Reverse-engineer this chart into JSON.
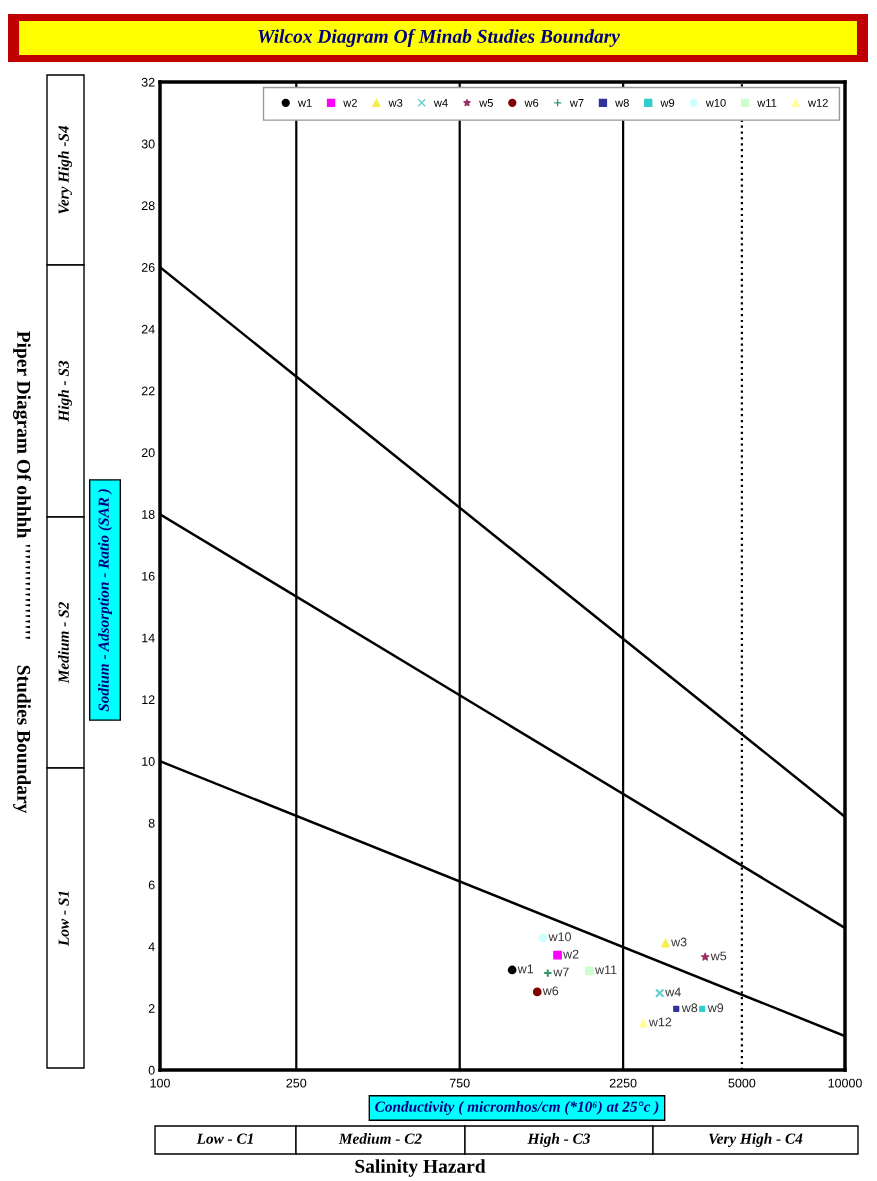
{
  "chart_data": {
    "type": "scatter",
    "title": "Wilcox Diagram Of Minab Studies Boundary",
    "xlabel": "Conductivity ( micromhos/cm (*10⁶) at 25°c )",
    "ylabel": "Sodium - Adsorption - Ratio (SAR )",
    "log": "x",
    "xlim": [
      100,
      10000
    ],
    "xticks": [
      100,
      250,
      750,
      2250,
      5000,
      10000
    ],
    "ylim": [
      0,
      32
    ],
    "yticks": [
      0,
      2,
      4,
      6,
      8,
      10,
      12,
      14,
      16,
      18,
      20,
      22,
      24,
      26,
      28,
      30,
      32
    ],
    "grid": false,
    "legend": "top right",
    "ref_lines": [
      {
        "axis": "x",
        "value": 250,
        "color": "#000000",
        "line_style": "solid"
      },
      {
        "axis": "x",
        "value": 750,
        "color": "#000000",
        "line_style": "solid"
      },
      {
        "axis": "x",
        "value": 2250,
        "color": "#000000",
        "line_style": "solid"
      },
      {
        "axis": "x",
        "value": 5000,
        "color": "#000000",
        "line_style": "dotted"
      }
    ],
    "series": [
      {
        "name": "w1",
        "color": "#000000",
        "marker": "circle",
        "x": [
          1067
        ],
        "values": [
          3.24
        ]
      },
      {
        "name": "w2",
        "color": "#ff00ff",
        "marker": "square",
        "x": [
          1448
        ],
        "values": [
          3.72
        ]
      },
      {
        "name": "w3",
        "color": "#f5f050",
        "marker": "triangle",
        "x": [
          2993
        ],
        "values": [
          4.11
        ]
      },
      {
        "name": "w4",
        "color": "#66cccc",
        "marker": "cross",
        "x": [
          2877
        ],
        "values": [
          2.49
        ]
      },
      {
        "name": "w5",
        "color": "#993366",
        "marker": "star",
        "x": [
          3906
        ],
        "values": [
          3.66
        ]
      },
      {
        "name": "w6",
        "color": "#800000",
        "marker": "circle",
        "x": [
          1263
        ],
        "values": [
          2.53
        ]
      },
      {
        "name": "w7",
        "color": "#339966",
        "marker": "plus",
        "x": [
          1356
        ],
        "values": [
          3.14
        ]
      },
      {
        "name": "w8",
        "color": "#333399",
        "marker": "square",
        "x": [
          3215
        ],
        "values": [
          1.98
        ]
      },
      {
        "name": "w9",
        "color": "#33cccc",
        "marker": "square",
        "x": [
          3828
        ],
        "values": [
          1.98
        ]
      },
      {
        "name": "w10",
        "color": "#ccffff",
        "marker": "circle",
        "x": [
          1313
        ],
        "values": [
          4.28
        ]
      },
      {
        "name": "w11",
        "color": "#ccffcc",
        "marker": "square",
        "x": [
          1795
        ],
        "values": [
          3.21
        ]
      },
      {
        "name": "w12",
        "color": "#ffff99",
        "marker": "triangle",
        "x": [
          2577
        ],
        "values": [
          1.52
        ]
      },
      {
        "type": "line",
        "color": "#000000",
        "x": [
          100,
          10000
        ],
        "values": [
          26,
          8.2
        ]
      },
      {
        "type": "line",
        "color": "#000000",
        "x": [
          100,
          10000
        ],
        "values": [
          18,
          4.6
        ]
      },
      {
        "type": "line",
        "color": "#000000",
        "x": [
          100,
          10000
        ],
        "values": [
          10,
          1.1
        ]
      }
    ],
    "annotations": [
      "Very High -S4",
      "High - S3",
      "Medium - S2",
      "Low - S1",
      "Piper Diagram Of ohhhh ''''''''''''''''''     Studies Boundary",
      "Low - C1",
      "Medium - C2",
      "High - C3",
      "Very High - C4",
      "Salinity Hazard"
    ]
  }
}
